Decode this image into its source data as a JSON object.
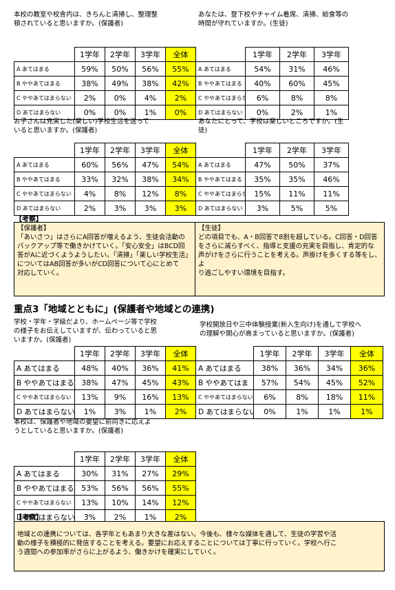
{
  "headers": [
    "1学年",
    "2学年",
    "3学年",
    "全体"
  ],
  "blocks": [
    {
      "question": "本校の教室や校舎内は、きちんと清掃し、整理整\n頓されていると思いますか。(保護者)",
      "labels": [
        "A あてはまる",
        "B ややあてはまる",
        "C ややあてはまらない",
        "D あてはまらない"
      ],
      "rows": [
        [
          "59%",
          "50%",
          "56%",
          "55%"
        ],
        [
          "38%",
          "49%",
          "38%",
          "42%"
        ],
        [
          "2%",
          "0%",
          "4%",
          "2%"
        ],
        [
          "0%",
          "0%",
          "1%",
          "0%"
        ]
      ]
    },
    {
      "question": "あなたは、登下校やチャイム着席、清掃、給食等の\n時間が守れていますか。(生徒)",
      "labels": [
        "A あてはまる",
        "B ややあてはまる",
        "C ややあてはまらない",
        "D あてはまらない"
      ],
      "rows": [
        [
          "54%",
          "31%",
          "46%"
        ],
        [
          "40%",
          "60%",
          "45%"
        ],
        [
          "6%",
          "8%",
          "8%"
        ],
        [
          "0%",
          "2%",
          "1%"
        ]
      ]
    },
    {
      "question": "お子さんは充実した(楽しい)学校生活を送って\nいると思いますか。(保護者)",
      "labels": [
        "A あてはまる",
        "B ややあてはまる",
        "C ややあてはまらない",
        "D あてはまらない"
      ],
      "rows": [
        [
          "60%",
          "56%",
          "47%",
          "54%"
        ],
        [
          "33%",
          "32%",
          "38%",
          "34%"
        ],
        [
          "4%",
          "8%",
          "12%",
          "8%"
        ],
        [
          "2%",
          "3%",
          "3%",
          "3%"
        ]
      ]
    },
    {
      "question": "あなたにとって、学校は楽しいところですか。(生\n徒)",
      "labels": [
        "A あてはまる",
        "B ややあてはまる",
        "C ややあてはまらない",
        "D あてはまらない"
      ],
      "rows": [
        [
          "47%",
          "50%",
          "37%"
        ],
        [
          "35%",
          "35%",
          "46%"
        ],
        [
          "15%",
          "11%",
          "11%"
        ],
        [
          "3%",
          "5%",
          "5%"
        ]
      ]
    },
    {
      "question": "学校・学年・学級だより、ホームページ等で学校\nの様子をお伝えしていますが、伝わっていると思\nいますか。(保護者)",
      "labels": [
        "A あてはまる",
        "B ややあてはまる",
        "C ややあてはまらない",
        "D あてはまらない"
      ],
      "rows": [
        [
          "48%",
          "40%",
          "36%",
          "41%"
        ],
        [
          "38%",
          "47%",
          "45%",
          "43%"
        ],
        [
          "13%",
          "9%",
          "16%",
          "13%"
        ],
        [
          "1%",
          "3%",
          "1%",
          "2%"
        ]
      ]
    },
    {
      "question": "学校開放日や三中体験授業(新入生向け)を通して学校へ\nの理解や関心が高まっていると思いますか。(保護者)",
      "labels": [
        "A あてはまる",
        "B ややあてはま",
        "C ややあてはまらない",
        "D あてはまらない"
      ],
      "rows": [
        [
          "38%",
          "36%",
          "34%",
          "36%"
        ],
        [
          "57%",
          "54%",
          "45%",
          "52%"
        ],
        [
          "6%",
          "8%",
          "18%",
          "11%"
        ],
        [
          "0%",
          "1%",
          "1%",
          "1%"
        ]
      ]
    },
    {
      "question": "本校は、保護者や地域の要望に前向きに応えよ\nうとしていると思いますか。(保護者)",
      "labels": [
        "A あてはまる",
        "B ややあてはまる",
        "C ややあてはまらない",
        "D あてはまらない"
      ],
      "rows": [
        [
          "30%",
          "31%",
          "27%",
          "29%"
        ],
        [
          "53%",
          "56%",
          "56%",
          "55%"
        ],
        [
          "13%",
          "10%",
          "14%",
          "12%"
        ],
        [
          "3%",
          "2%",
          "1%",
          "2%"
        ]
      ]
    }
  ],
  "kosatsu1": {
    "tag": "【考察】",
    "left": "【保護者】\n「あいさつ」はさらにA回答が増えるよう、生徒会活動の\nバックアップ等で働きかけていく。「安心安全」はBCD回\n答がAに近づくようようしたい。「清掃」「楽しい学校生活」\nについてはAB回答が多いがCD回答について心にとめて\n対応していく。",
    "right": "【生徒】\nどの項目でも、A・B回答で8割を超している。C回答・D回答\nをさらに減らすべく、指導と支援の充実を目指し、肯定的な\n声がけをさらに行うことを考える。声掛けを多くする等をし、よ\nり過ごしやすい環境を目指す。"
  },
  "section_title": "重点3「地域とともに」(保護者や地域との連携)",
  "kosatsu2": {
    "tag": "【考察】",
    "text": "地域との連携については、各学年ともあまり大きな差はない。今後も、様々な媒体を通して、生徒の学習や活\n動の様子を積極的に発信することを考える。要望にお応えすることについては丁寧に行っていく。学校へ行こ\nう週間への参加率がさらに上がるよう、働きかけを確実にしていく。"
  }
}
